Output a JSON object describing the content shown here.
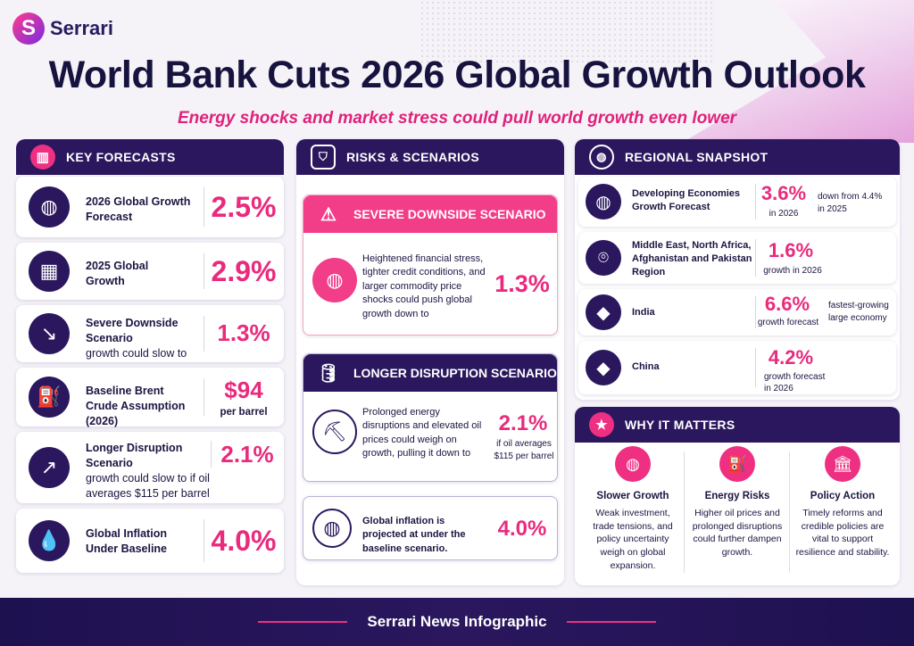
{
  "brand": {
    "name": "Serrari"
  },
  "title": "World Bank Cuts 2026 Global Growth Outlook",
  "subtitle": "Energy shocks and market stress could pull world growth even lower",
  "key_forecasts": {
    "heading": "KEY FORECASTS",
    "items": [
      {
        "label": "2026 Global Growth Forecast",
        "value": "2.5%",
        "icon": "globe-icon"
      },
      {
        "label": "2025 Global Growth",
        "value": "2.9%",
        "icon": "calendar-icon"
      },
      {
        "label": "Severe Downside Scenario",
        "sub": "growth could slow to",
        "value": "1.3%",
        "icon": "chart-down-icon"
      },
      {
        "label": "Baseline Brent Crude Assumption (2026)",
        "value": "$94",
        "unit": "per barrel",
        "icon": "oil-barrel-icon"
      },
      {
        "label": "Longer Disruption Scenario",
        "sub": "growth could slow to if oil averages $115 per barrel",
        "value": "2.1%",
        "icon": "chart-up-icon"
      },
      {
        "label": "Global Inflation Under Baseline",
        "value": "4.0%",
        "icon": "drop-icon"
      }
    ]
  },
  "risks": {
    "heading": "RISKS & SCENARIOS",
    "severe": {
      "heading": "SEVERE DOWNSIDE SCENARIO",
      "text": "Heightened financial stress, tighter credit conditions, and larger commodity price shocks could push global growth down to",
      "value": "1.3%"
    },
    "longer": {
      "heading": "LONGER DISRUPTION SCENARIO",
      "text": "Prolonged energy disruptions and elevated oil prices could weigh on growth, pulling it down to",
      "value": "2.1%",
      "note": "if oil averages $115 per barrel"
    },
    "inflation": {
      "text": "Global inflation is projected at under the baseline scenario.",
      "value": "4.0%"
    }
  },
  "regional": {
    "heading": "REGIONAL SNAPSHOT",
    "items": [
      {
        "label": "Developing Economies Growth Forecast",
        "value": "3.6%",
        "caption": "in 2026",
        "note": "down from 4.4% in 2025"
      },
      {
        "label": "Middle East, North Africa, Afghanistan and Pakistan Region",
        "value": "1.6%",
        "caption": "growth in 2026",
        "note": ""
      },
      {
        "label": "India",
        "value": "6.6%",
        "caption": "growth forecast",
        "note": "fastest-growing large economy"
      },
      {
        "label": "China",
        "value": "4.2%",
        "caption": "growth forecast in 2026",
        "note": ""
      }
    ]
  },
  "why": {
    "heading": "WHY IT MATTERS",
    "items": [
      {
        "title": "Slower Growth",
        "text": "Weak investment, trade tensions, and policy uncertainty weigh on global expansion."
      },
      {
        "title": "Energy Risks",
        "text": "Higher oil prices and prolonged disruptions could further dampen growth."
      },
      {
        "title": "Policy Action",
        "text": "Timely reforms and credible policies are vital to support resilience and stability."
      }
    ]
  },
  "footer": "Serrari News Infographic"
}
